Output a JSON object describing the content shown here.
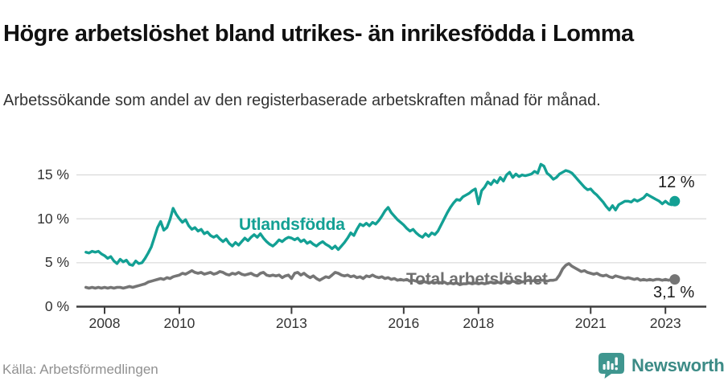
{
  "header": {
    "title": "Högre arbetslöshet bland utrikes- än inrikesfödda i Lomma",
    "subtitle": "Arbetssökande som andel av den registerbaserade arbetskraften månad för månad."
  },
  "footer": {
    "source": "Källa: Arbetsförmedlingen",
    "brand": "Newsworthy"
  },
  "colors": {
    "foreign_born": "#13a094",
    "total_line": "#757575",
    "grid": "#dcdcdc",
    "axis": "#3d3d3d",
    "annotation_text": "#1a1a1a",
    "source_text": "#909090",
    "brand_teal": "#3f968f"
  },
  "chart_data": {
    "type": "line",
    "title": "Högre arbetslöshet bland utrikes- än inrikesfödda i Lomma",
    "subtitle": "Arbetssökande som andel av den registerbaserade arbetskraften månad för månad.",
    "xlabel": "",
    "ylabel": "",
    "x_start_year": 2007.5,
    "x_step": "monthly",
    "x_ticks": [
      2008,
      2010,
      2013,
      2016,
      2018,
      2021,
      2023
    ],
    "y_ticks": [
      {
        "value": 0,
        "label": "0 %"
      },
      {
        "value": 5,
        "label": "5 %"
      },
      {
        "value": 10,
        "label": "10 %"
      },
      {
        "value": 15,
        "label": "15 %"
      }
    ],
    "xlim": [
      2007.25,
      2024.1
    ],
    "ylim": [
      0,
      17
    ],
    "grid": "horizontal",
    "legend_position": "inline-labels",
    "series": [
      {
        "name": "Utlandsfödda",
        "color_key": "foreign_born",
        "end_label": "12 %",
        "end_value": 12.0,
        "values": [
          6.2,
          6.1,
          6.3,
          6.2,
          6.3,
          6.0,
          5.8,
          5.5,
          5.7,
          5.2,
          4.9,
          5.4,
          5.1,
          5.3,
          4.8,
          4.7,
          5.2,
          4.9,
          5.0,
          5.5,
          6.1,
          6.8,
          7.9,
          9.0,
          9.7,
          8.7,
          9.0,
          9.9,
          11.2,
          10.5,
          10.0,
          9.6,
          9.9,
          9.2,
          8.8,
          9.0,
          8.6,
          8.8,
          8.3,
          8.5,
          8.1,
          7.9,
          8.1,
          7.7,
          7.4,
          7.7,
          7.2,
          6.9,
          7.3,
          7.0,
          7.4,
          7.8,
          7.5,
          7.9,
          8.2,
          7.9,
          8.3,
          7.8,
          7.4,
          7.1,
          6.9,
          7.2,
          7.6,
          7.4,
          7.7,
          7.9,
          7.8,
          7.6,
          7.8,
          7.4,
          7.6,
          7.2,
          7.4,
          7.1,
          6.9,
          7.2,
          7.4,
          7.1,
          6.9,
          6.6,
          6.9,
          6.5,
          6.9,
          7.3,
          7.8,
          8.4,
          8.1,
          8.8,
          9.4,
          9.2,
          9.5,
          9.2,
          9.6,
          9.4,
          9.8,
          10.3,
          10.9,
          11.3,
          10.7,
          10.3,
          9.9,
          9.6,
          9.3,
          8.9,
          8.6,
          8.8,
          8.4,
          8.1,
          7.9,
          8.3,
          8.0,
          8.4,
          8.2,
          8.6,
          9.3,
          10.0,
          10.7,
          11.3,
          11.8,
          12.2,
          12.1,
          12.5,
          12.7,
          12.9,
          13.2,
          13.4,
          11.7,
          13.2,
          13.6,
          14.2,
          13.9,
          14.4,
          14.1,
          14.7,
          14.3,
          15.0,
          15.3,
          14.7,
          15.1,
          14.8,
          15.0,
          14.9,
          15.0,
          15.1,
          15.4,
          15.2,
          16.2,
          16.0,
          15.2,
          14.9,
          14.5,
          14.7,
          15.1,
          15.3,
          15.5,
          15.4,
          15.2,
          14.8,
          14.4,
          14.0,
          13.6,
          13.3,
          13.4,
          13.0,
          12.7,
          12.3,
          11.9,
          11.4,
          11.0,
          11.5,
          11.0,
          11.6,
          11.8,
          12.0,
          12.0,
          11.9,
          12.2,
          12.0,
          12.2,
          12.4,
          12.8,
          12.6,
          12.4,
          12.2,
          12.0,
          11.7,
          12.0,
          11.7,
          11.6,
          12.0
        ]
      },
      {
        "name": "Total arbetslöshet",
        "color_key": "total_line",
        "end_label": "3,1 %",
        "end_value": 3.1,
        "values": [
          2.2,
          2.1,
          2.2,
          2.1,
          2.2,
          2.1,
          2.2,
          2.1,
          2.2,
          2.1,
          2.2,
          2.2,
          2.1,
          2.2,
          2.3,
          2.2,
          2.3,
          2.4,
          2.5,
          2.6,
          2.8,
          2.9,
          3.0,
          3.1,
          3.2,
          3.1,
          3.3,
          3.2,
          3.4,
          3.5,
          3.6,
          3.8,
          3.7,
          3.9,
          4.1,
          3.9,
          3.8,
          3.9,
          3.7,
          3.8,
          3.9,
          3.7,
          3.8,
          4.0,
          3.9,
          3.7,
          3.6,
          3.8,
          3.7,
          3.9,
          3.7,
          3.6,
          3.7,
          3.8,
          3.6,
          3.5,
          3.8,
          3.9,
          3.6,
          3.5,
          3.6,
          3.5,
          3.6,
          3.3,
          3.5,
          3.6,
          3.2,
          3.8,
          3.9,
          3.6,
          3.8,
          3.5,
          3.3,
          3.5,
          3.2,
          3.0,
          3.2,
          3.4,
          3.3,
          3.6,
          3.9,
          3.8,
          3.6,
          3.5,
          3.6,
          3.4,
          3.5,
          3.3,
          3.4,
          3.2,
          3.5,
          3.4,
          3.6,
          3.4,
          3.3,
          3.4,
          3.2,
          3.3,
          3.1,
          3.2,
          3.0,
          3.1,
          3.0,
          3.1,
          2.9,
          3.0,
          2.9,
          2.8,
          2.9,
          2.8,
          2.7,
          2.8,
          2.7,
          2.8,
          2.7,
          2.8,
          2.6,
          2.7,
          2.6,
          2.7,
          2.5,
          2.6,
          2.6,
          2.7,
          2.6,
          2.7,
          2.6,
          2.7,
          2.6,
          2.7,
          2.8,
          2.7,
          2.8,
          2.7,
          2.8,
          2.9,
          2.8,
          2.9,
          2.8,
          2.9,
          2.8,
          2.9,
          3.0,
          2.9,
          3.0,
          2.9,
          3.0,
          3.0,
          2.9,
          3.0,
          3.0,
          3.1,
          3.6,
          4.3,
          4.7,
          4.9,
          4.6,
          4.4,
          4.2,
          4.0,
          4.1,
          3.9,
          3.8,
          3.7,
          3.8,
          3.6,
          3.5,
          3.6,
          3.4,
          3.3,
          3.5,
          3.4,
          3.3,
          3.2,
          3.3,
          3.2,
          3.1,
          3.2,
          3.0,
          3.1,
          3.0,
          3.1,
          3.0,
          3.1,
          3.1,
          3.0,
          3.1,
          3.0,
          3.1,
          3.1
        ]
      }
    ]
  }
}
